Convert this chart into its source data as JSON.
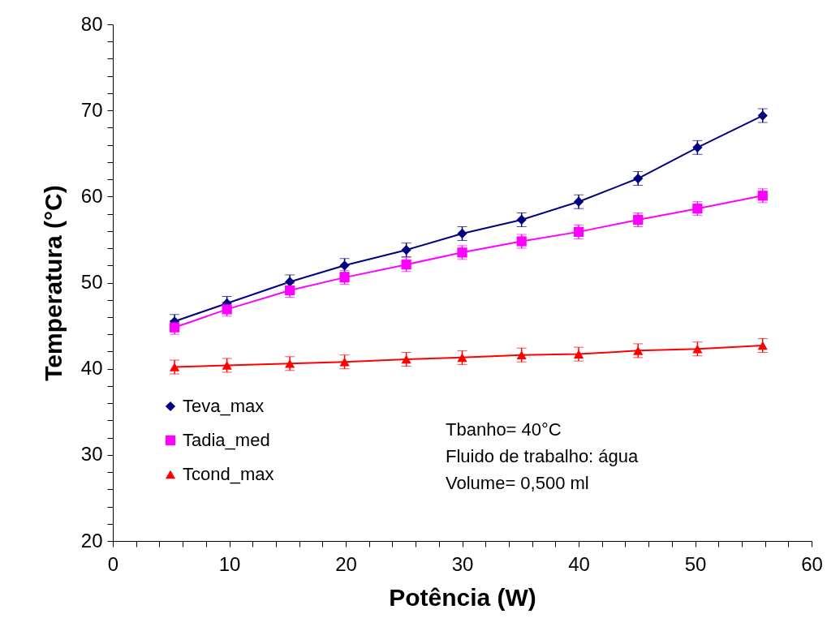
{
  "chart_data": {
    "type": "line",
    "xlabel": "Potência (W)",
    "ylabel": "Temperatura (°C)",
    "x": [
      5.3,
      9.8,
      15.2,
      19.9,
      25.2,
      30.0,
      35.1,
      40.0,
      45.1,
      50.2,
      55.8
    ],
    "series": [
      {
        "name": "Teva_max",
        "color": "#000080",
        "marker": "diamond",
        "values": [
          45.5,
          47.6,
          50.1,
          52.0,
          53.8,
          55.7,
          57.3,
          59.4,
          62.1,
          65.7,
          69.4
        ],
        "errors": [
          0.8,
          0.8,
          0.8,
          0.8,
          0.8,
          0.8,
          0.8,
          0.8,
          0.8,
          0.8,
          0.8
        ]
      },
      {
        "name": "Tadia_med",
        "color": "#ff00ff",
        "marker": "square",
        "values": [
          44.8,
          46.9,
          49.1,
          50.6,
          52.1,
          53.5,
          54.8,
          55.9,
          57.3,
          58.6,
          60.1
        ],
        "errors": [
          0.8,
          0.8,
          0.8,
          0.8,
          0.8,
          0.8,
          0.8,
          0.8,
          0.8,
          0.8,
          0.8
        ]
      },
      {
        "name": "Tcond_max",
        "color": "#ff0000",
        "marker": "triangle",
        "values": [
          40.2,
          40.4,
          40.6,
          40.8,
          41.1,
          41.3,
          41.6,
          41.7,
          42.1,
          42.3,
          42.7
        ],
        "errors": [
          0.8,
          0.8,
          0.8,
          0.8,
          0.8,
          0.8,
          0.8,
          0.8,
          0.8,
          0.8,
          0.8
        ]
      }
    ],
    "xlim": [
      0,
      60
    ],
    "ylim": [
      20,
      80
    ],
    "xticks": [
      0,
      {
        "value": 2,
        "label": null
      },
      {
        "value": 4,
        "label": null
      },
      {
        "value": 6,
        "label": null
      },
      {
        "value": 8,
        "label": null
      },
      10,
      {
        "value": 12,
        "label": null
      },
      {
        "value": 14,
        "label": null
      },
      {
        "value": 16,
        "label": null
      },
      {
        "value": 18,
        "label": null
      },
      20,
      {
        "value": 22,
        "label": null
      },
      {
        "value": 24,
        "label": null
      },
      {
        "value": 26,
        "label": null
      },
      {
        "value": 28,
        "label": null
      },
      30,
      {
        "value": 32,
        "label": null
      },
      {
        "value": 34,
        "label": null
      },
      {
        "value": 36,
        "label": null
      },
      {
        "value": 38,
        "label": null
      },
      40,
      {
        "value": 42,
        "label": null
      },
      {
        "value": 44,
        "label": null
      },
      {
        "value": 46,
        "label": null
      },
      {
        "value": 48,
        "label": null
      },
      50,
      {
        "value": 52,
        "label": null
      },
      {
        "value": 54,
        "label": null
      },
      {
        "value": 56,
        "label": null
      },
      {
        "value": 58,
        "label": null
      },
      60
    ],
    "yticks": [
      20,
      {
        "value": 22,
        "label": null
      },
      {
        "value": 24,
        "label": null
      },
      {
        "value": 26,
        "label": null
      },
      {
        "value": 28,
        "label": null
      },
      30,
      {
        "value": 32,
        "label": null
      },
      {
        "value": 34,
        "label": null
      },
      {
        "value": 36,
        "label": null
      },
      {
        "value": 38,
        "label": null
      },
      40,
      {
        "value": 42,
        "label": null
      },
      {
        "value": 44,
        "label": null
      },
      {
        "value": 46,
        "label": null
      },
      {
        "value": 48,
        "label": null
      },
      50,
      {
        "value": 52,
        "label": null
      },
      {
        "value": 54,
        "label": null
      },
      {
        "value": 56,
        "label": null
      },
      {
        "value": 58,
        "label": null
      },
      60,
      {
        "value": 62,
        "label": null
      },
      {
        "value": 64,
        "label": null
      },
      {
        "value": 66,
        "label": null
      },
      {
        "value": 68,
        "label": null
      },
      70,
      {
        "value": 72,
        "label": null
      },
      {
        "value": 74,
        "label": null
      },
      {
        "value": 76,
        "label": null
      },
      {
        "value": 78,
        "label": null
      },
      80
    ],
    "annotations": [
      "Tbanho= 40°C",
      "Fluido de trabalho: água",
      "Volume= 0,500 ml"
    ],
    "legend": "left",
    "grid": false
  }
}
